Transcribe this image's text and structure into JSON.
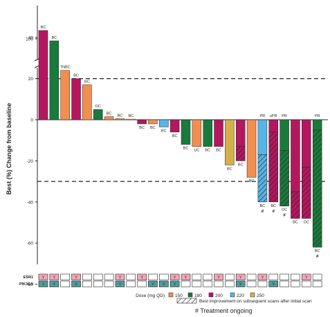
{
  "chart_data": {
    "type": "bar",
    "ylabel": "Best (%) Change from baseline",
    "axis_break": {
      "upper_ticks": [
        100,
        40
      ],
      "lower_ticks": [
        20,
        0,
        -20,
        -40,
        -60,
        -80,
        -100
      ]
    },
    "reference_lines": [
      20,
      -30
    ],
    "dose_colors": {
      "150": "#f28e4f",
      "180": "#1a7a3c",
      "200": "#b5175f",
      "220": "#57b4e6",
      "250": "#d4b04a"
    },
    "legend": {
      "dose_title": "Dose (mg QD)",
      "doses": [
        "150",
        "180",
        "200",
        "220",
        "250"
      ],
      "hatch_label": "Best improvement on subsequent scans after initial scan",
      "ongoing_label": "# Treatment ongoing"
    },
    "row_labels": [
      "ESR1",
      "PIK3CA"
    ],
    "marker_text": "Y",
    "bars": [
      {
        "value": 120,
        "dose": "200",
        "label": "BC",
        "esr1": true,
        "pik3ca": true
      },
      {
        "value": 95,
        "dose": "180",
        "label": "BC",
        "esr1": true,
        "pik3ca": true
      },
      {
        "value": 24,
        "dose": "150",
        "label": "TNBC",
        "esr1": false,
        "pik3ca": false
      },
      {
        "value": 20,
        "dose": "200",
        "label": "BC",
        "esr1": true,
        "pik3ca": true
      },
      {
        "value": 17,
        "dose": "150",
        "label": "BC",
        "esr1": false,
        "pik3ca": false
      },
      {
        "value": 5,
        "dose": "180",
        "label": "OC",
        "esr1": false,
        "pik3ca": false
      },
      {
        "value": 1.5,
        "dose": "150",
        "label": "BC",
        "esr1": false,
        "pik3ca": false
      },
      {
        "value": 0.5,
        "dose": "150",
        "label": "BC",
        "esr1": true,
        "pik3ca": true
      },
      {
        "value": 0.3,
        "dose": "150",
        "label": "BC",
        "esr1": false,
        "pik3ca": false
      },
      {
        "value": -2,
        "dose": "200",
        "label": "BC",
        "esr1": true,
        "pik3ca": false
      },
      {
        "value": -2,
        "dose": "150",
        "label": "BC",
        "esr1": false,
        "pik3ca": true
      },
      {
        "value": -3.5,
        "dose": "220",
        "label": "BC",
        "esr1": false,
        "pik3ca": true
      },
      {
        "value": -6,
        "dose": "200",
        "label": "BC",
        "esr1": true,
        "pik3ca": true
      },
      {
        "value": -12,
        "dose": "180",
        "label": "BC",
        "esr1": true,
        "pik3ca": false
      },
      {
        "value": -13,
        "dose": "150",
        "label": "UC",
        "esr1": false,
        "pik3ca": false
      },
      {
        "value": -13,
        "dose": "180",
        "label": "BC",
        "esr1": false,
        "pik3ca": false
      },
      {
        "value": -13,
        "dose": "200",
        "label": "BC",
        "esr1": true,
        "pik3ca": false
      },
      {
        "value": -22,
        "dose": "250",
        "label": "BC",
        "esr1": false,
        "pik3ca": false
      },
      {
        "value": -20,
        "dose": "200",
        "label": "BC",
        "esr1": true,
        "pik3ca": true,
        "hatch_from": -13
      },
      {
        "value": -28,
        "dose": "150",
        "label": "BC",
        "esr1": false,
        "pik3ca": false
      },
      {
        "value": -40,
        "dose": "220",
        "label": "BC",
        "esr1": true,
        "pik3ca": false,
        "hatch_from": -17,
        "top_label": "PR",
        "ongoing": true
      },
      {
        "value": -40,
        "dose": "200",
        "label": "BC",
        "esr1": false,
        "pik3ca": true,
        "hatch_from": -6,
        "top_label": "uPR",
        "ongoing": true
      },
      {
        "value": -42,
        "dose": "180",
        "label": "OC",
        "esr1": false,
        "pik3ca": false,
        "hatch_from": -15,
        "top_label": "PR",
        "ongoing": true
      },
      {
        "value": -48,
        "dose": "200",
        "label": "BC",
        "esr1": false,
        "pik3ca": false,
        "hatch_from": -35
      },
      {
        "value": -48,
        "dose": "200",
        "label": "OC",
        "esr1": true,
        "pik3ca": false,
        "hatch_from": -23
      },
      {
        "value": -62,
        "dose": "180",
        "label": "BC",
        "esr1": false,
        "pik3ca": false,
        "hatch_from": -5,
        "top_label": "PR",
        "ongoing": true
      }
    ]
  }
}
